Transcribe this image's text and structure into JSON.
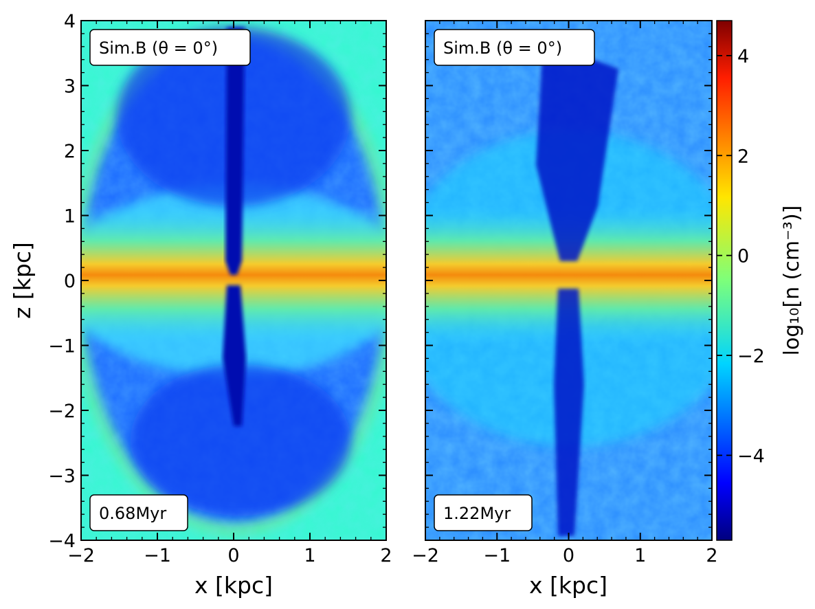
{
  "chart_data": [
    {
      "type": "heatmap",
      "panel": "left",
      "annotation": "Sim.B (θ = 0°)",
      "time_label": "0.68Myr",
      "xlabel": "x [kpc]",
      "ylabel": "z [kpc]",
      "xlim": [
        -2,
        2
      ],
      "ylim": [
        -4,
        4
      ],
      "xticks": [
        "−2",
        "−1",
        "0",
        "1",
        "2"
      ],
      "yticks": [
        "−4",
        "−3",
        "−2",
        "−1",
        "0",
        "1",
        "2",
        "3",
        "4"
      ]
    },
    {
      "type": "heatmap",
      "panel": "right",
      "annotation": "Sim.B (θ = 0°)",
      "time_label": "1.22Myr",
      "xlabel": "x [kpc]",
      "ylabel": "",
      "xlim": [
        -2,
        2
      ],
      "ylim": [
        -4,
        4
      ],
      "xticks": [
        "−2",
        "−1",
        "0",
        "1",
        "2"
      ],
      "yticks": []
    }
  ],
  "colorbar": {
    "label": "log₁₀[n (cm⁻³)]",
    "colormap": "jet",
    "range": [
      -5.7,
      4.7
    ],
    "ticks": [
      {
        "value": 4,
        "label": "4"
      },
      {
        "value": 2,
        "label": "2"
      },
      {
        "value": 0,
        "label": "0"
      },
      {
        "value": -2,
        "label": "−2"
      },
      {
        "value": -4,
        "label": "−4"
      }
    ]
  }
}
